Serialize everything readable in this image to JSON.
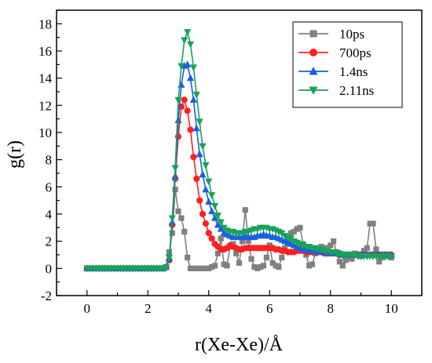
{
  "chart_data": {
    "type": "line",
    "title": "",
    "xlabel": "r(Xe-Xe)/Å",
    "ylabel": "g(r)",
    "xlim": [
      -1,
      11
    ],
    "ylim": [
      -2,
      19
    ],
    "xticks": [
      0,
      2,
      4,
      6,
      8,
      10
    ],
    "yticks": [
      -2,
      0,
      2,
      4,
      6,
      8,
      10,
      12,
      14,
      16,
      18
    ],
    "grid": false,
    "legend_position": "top-right",
    "series": [
      {
        "name": "10ps",
        "color": "#808080",
        "marker": "square",
        "x": [
          0,
          0.1,
          0.2,
          0.3,
          0.4,
          0.5,
          0.6,
          0.7,
          0.8,
          0.9,
          1.0,
          1.1,
          1.2,
          1.3,
          1.4,
          1.5,
          1.6,
          1.7,
          1.8,
          1.9,
          2.0,
          2.1,
          2.2,
          2.3,
          2.4,
          2.5,
          2.6,
          2.7,
          2.8,
          2.9,
          3.0,
          3.1,
          3.2,
          3.3,
          3.4,
          3.5,
          3.6,
          3.7,
          3.8,
          3.9,
          4.0,
          4.1,
          4.2,
          4.3,
          4.4,
          4.5,
          4.6,
          4.7,
          4.8,
          4.9,
          5.0,
          5.1,
          5.2,
          5.3,
          5.4,
          5.5,
          5.6,
          5.7,
          5.8,
          5.9,
          6.0,
          6.1,
          6.2,
          6.3,
          6.4,
          6.5,
          6.6,
          6.7,
          6.8,
          6.9,
          7.0,
          7.1,
          7.2,
          7.3,
          7.4,
          7.5,
          7.6,
          7.7,
          7.8,
          7.9,
          8.0,
          8.1,
          8.2,
          8.3,
          8.4,
          8.5,
          8.6,
          8.7,
          8.8,
          8.9,
          9.0,
          9.1,
          9.2,
          9.3,
          9.4,
          9.5,
          9.6,
          9.7,
          9.8,
          9.9,
          10.0
        ],
        "y": [
          0,
          0,
          0,
          0,
          0,
          0,
          0,
          0,
          0,
          0,
          0,
          0,
          0,
          0,
          0,
          0,
          0,
          0,
          0,
          0,
          0,
          0,
          0,
          0,
          0,
          0,
          0.1,
          1.2,
          2.6,
          5.8,
          4.2,
          3.7,
          2.7,
          0.8,
          0,
          0,
          0,
          0,
          0,
          0,
          0,
          0.1,
          0.2,
          1.1,
          2.2,
          0.3,
          0.2,
          1.6,
          1.8,
          1.1,
          0.4,
          2.0,
          4.3,
          2.0,
          0.7,
          0.1,
          0,
          0.1,
          0.2,
          0.8,
          1.7,
          0.4,
          0.2,
          0.1,
          0.8,
          1.5,
          2.1,
          2.6,
          2.7,
          2.9,
          3.0,
          1.8,
          1.0,
          0.2,
          0.3,
          1.1,
          1.3,
          1.6,
          1.5,
          1.5,
          1.7,
          2.0,
          1.2,
          0.5,
          0.2,
          0.6,
          0.8,
          0.7,
          1.1,
          1.0,
          0.9,
          1.3,
          1.5,
          3.3,
          3.3,
          1.4,
          0.5,
          0.8,
          1.0,
          0.9,
          0.8
        ]
      },
      {
        "name": "700ps",
        "color": "#ff2020",
        "marker": "circle",
        "x": [
          0,
          0.1,
          0.2,
          0.3,
          0.4,
          0.5,
          0.6,
          0.7,
          0.8,
          0.9,
          1.0,
          1.1,
          1.2,
          1.3,
          1.4,
          1.5,
          1.6,
          1.7,
          1.8,
          1.9,
          2.0,
          2.1,
          2.2,
          2.3,
          2.4,
          2.5,
          2.6,
          2.7,
          2.8,
          2.9,
          3.0,
          3.1,
          3.2,
          3.3,
          3.4,
          3.5,
          3.6,
          3.7,
          3.8,
          3.9,
          4.0,
          4.1,
          4.2,
          4.3,
          4.4,
          4.5,
          4.6,
          4.7,
          4.8,
          4.9,
          5.0,
          5.1,
          5.2,
          5.3,
          5.4,
          5.5,
          5.6,
          5.7,
          5.8,
          5.9,
          6.0,
          6.1,
          6.2,
          6.3,
          6.4,
          6.5,
          6.6,
          6.7,
          6.8,
          6.9,
          7.0,
          7.1,
          7.2,
          7.3,
          7.4,
          7.5,
          7.6,
          7.7,
          7.8,
          7.9,
          8.0,
          8.1,
          8.2,
          8.3,
          8.4,
          8.5,
          8.6,
          8.7,
          8.8,
          8.9,
          9.0,
          9.1,
          9.2,
          9.3,
          9.4,
          9.5,
          9.6,
          9.7,
          9.8,
          9.9,
          10.0
        ],
        "y": [
          0,
          0,
          0,
          0,
          0,
          0,
          0,
          0,
          0,
          0,
          0,
          0,
          0,
          0,
          0,
          0,
          0,
          0,
          0,
          0,
          0,
          0,
          0,
          0,
          0,
          0,
          0.1,
          0.6,
          3.2,
          6.6,
          9.7,
          11.9,
          12.4,
          11.6,
          10.2,
          8.2,
          6.6,
          5.0,
          4.0,
          3.3,
          2.6,
          2.2,
          1.8,
          1.6,
          1.4,
          1.4,
          1.5,
          1.7,
          1.6,
          1.5,
          1.4,
          1.4,
          1.5,
          1.5,
          1.5,
          1.5,
          1.5,
          1.5,
          1.5,
          1.5,
          1.5,
          1.5,
          1.4,
          1.4,
          1.3,
          1.3,
          1.2,
          1.2,
          1.2,
          1.3,
          1.3,
          1.3,
          1.2,
          1.2,
          1.2,
          1.2,
          1.2,
          1.2,
          1.1,
          1.1,
          1.1,
          1.1,
          1.1,
          1.0,
          1.0,
          1.0,
          1.0,
          1.0,
          1.0,
          1.0,
          1.0,
          1.0,
          1.0,
          1.0,
          1.0,
          1.0,
          1.0,
          1.0,
          1.0,
          1.0,
          1.0
        ]
      },
      {
        "name": "1.4ns",
        "color": "#1a5fe0",
        "marker": "triangle-up",
        "x": [
          0,
          0.1,
          0.2,
          0.3,
          0.4,
          0.5,
          0.6,
          0.7,
          0.8,
          0.9,
          1.0,
          1.1,
          1.2,
          1.3,
          1.4,
          1.5,
          1.6,
          1.7,
          1.8,
          1.9,
          2.0,
          2.1,
          2.2,
          2.3,
          2.4,
          2.5,
          2.6,
          2.7,
          2.8,
          2.9,
          3.0,
          3.1,
          3.2,
          3.3,
          3.4,
          3.5,
          3.6,
          3.7,
          3.8,
          3.9,
          4.0,
          4.1,
          4.2,
          4.3,
          4.4,
          4.5,
          4.6,
          4.7,
          4.8,
          4.9,
          5.0,
          5.1,
          5.2,
          5.3,
          5.4,
          5.5,
          5.6,
          5.7,
          5.8,
          5.9,
          6.0,
          6.1,
          6.2,
          6.3,
          6.4,
          6.5,
          6.6,
          6.7,
          6.8,
          6.9,
          7.0,
          7.1,
          7.2,
          7.3,
          7.4,
          7.5,
          7.6,
          7.7,
          7.8,
          7.9,
          8.0,
          8.1,
          8.2,
          8.3,
          8.4,
          8.5,
          8.6,
          8.7,
          8.8,
          8.9,
          9.0,
          9.1,
          9.2,
          9.3,
          9.4,
          9.5,
          9.6,
          9.7,
          9.8,
          9.9,
          10.0
        ],
        "y": [
          0,
          0,
          0,
          0,
          0,
          0,
          0,
          0,
          0,
          0,
          0,
          0,
          0,
          0,
          0,
          0,
          0,
          0,
          0,
          0,
          0,
          0,
          0,
          0,
          0,
          0,
          0.1,
          0.7,
          3.4,
          6.8,
          10.9,
          13.5,
          14.9,
          15.0,
          14.0,
          12.4,
          10.3,
          8.4,
          6.9,
          5.8,
          4.9,
          4.2,
          3.7,
          3.2,
          2.9,
          2.6,
          2.5,
          2.4,
          2.3,
          2.3,
          2.3,
          2.3,
          2.4,
          2.3,
          2.3,
          2.3,
          2.4,
          2.4,
          2.5,
          2.4,
          2.4,
          2.3,
          2.3,
          2.2,
          2.1,
          2.0,
          1.9,
          1.8,
          1.7,
          1.6,
          1.5,
          1.4,
          1.4,
          1.3,
          1.3,
          1.3,
          1.2,
          1.2,
          1.2,
          1.2,
          1.1,
          1.1,
          1.1,
          1.1,
          1.0,
          1.0,
          1.0,
          1.0,
          1.0,
          1.0,
          1.0,
          1.0,
          1.0,
          1.0,
          1.0,
          1.0,
          1.0,
          1.0,
          1.0,
          1.0,
          1.0
        ]
      },
      {
        "name": "2.11ns",
        "color": "#16a35a",
        "marker": "triangle-down",
        "x": [
          0,
          0.1,
          0.2,
          0.3,
          0.4,
          0.5,
          0.6,
          0.7,
          0.8,
          0.9,
          1.0,
          1.1,
          1.2,
          1.3,
          1.4,
          1.5,
          1.6,
          1.7,
          1.8,
          1.9,
          2.0,
          2.1,
          2.2,
          2.3,
          2.4,
          2.5,
          2.6,
          2.7,
          2.8,
          2.9,
          3.0,
          3.1,
          3.2,
          3.3,
          3.4,
          3.5,
          3.6,
          3.7,
          3.8,
          3.9,
          4.0,
          4.1,
          4.2,
          4.3,
          4.4,
          4.5,
          4.6,
          4.7,
          4.8,
          4.9,
          5.0,
          5.1,
          5.2,
          5.3,
          5.4,
          5.5,
          5.6,
          5.7,
          5.8,
          5.9,
          6.0,
          6.1,
          6.2,
          6.3,
          6.4,
          6.5,
          6.6,
          6.7,
          6.8,
          6.9,
          7.0,
          7.1,
          7.2,
          7.3,
          7.4,
          7.5,
          7.6,
          7.7,
          7.8,
          7.9,
          8.0,
          8.1,
          8.2,
          8.3,
          8.4,
          8.5,
          8.6,
          8.7,
          8.8,
          8.9,
          9.0,
          9.1,
          9.2,
          9.3,
          9.4,
          9.5,
          9.6,
          9.7,
          9.8,
          9.9,
          10.0
        ],
        "y": [
          0,
          0,
          0,
          0,
          0,
          0,
          0,
          0,
          0,
          0,
          0,
          0,
          0,
          0,
          0,
          0,
          0,
          0,
          0,
          0,
          0,
          0,
          0,
          0,
          0,
          0,
          0.1,
          0.8,
          3.7,
          7.4,
          12.4,
          14.9,
          16.8,
          17.4,
          16.5,
          14.8,
          12.8,
          10.8,
          9.0,
          7.6,
          6.4,
          5.4,
          4.6,
          3.9,
          3.4,
          3.0,
          2.8,
          2.7,
          2.7,
          2.6,
          2.6,
          2.6,
          2.7,
          2.7,
          2.8,
          2.9,
          2.9,
          3.0,
          3.0,
          3.0,
          2.9,
          2.9,
          2.8,
          2.7,
          2.6,
          2.4,
          2.3,
          2.2,
          2.0,
          1.9,
          1.8,
          1.7,
          1.6,
          1.6,
          1.5,
          1.5,
          1.4,
          1.4,
          1.3,
          1.3,
          1.2,
          1.2,
          1.1,
          1.1,
          1.0,
          1.0,
          1.0,
          1.0,
          1.0,
          0.9,
          0.9,
          0.9,
          0.9,
          0.9,
          0.9,
          0.9,
          0.9,
          0.9,
          0.9,
          0.9,
          0.9
        ]
      }
    ]
  }
}
